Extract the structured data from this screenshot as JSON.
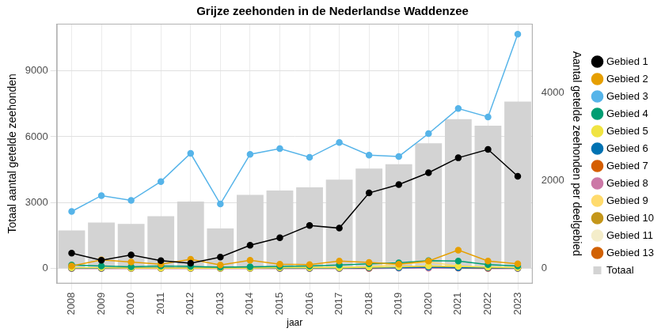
{
  "chart_data": {
    "type": "bar",
    "title": "Grijze zeehonden in de Nederlandse Waddenzee",
    "x_label": "jaar",
    "y_label": "Totaal aantal getelde zeehonden",
    "y2_label": "Aantal getelde zeehonden per deelgebied",
    "categories": [
      "2008",
      "2009",
      "2010",
      "2011",
      "2012",
      "2013",
      "2014",
      "2015",
      "2016",
      "2017",
      "2018",
      "2019",
      "2020",
      "2021",
      "2022",
      "2023"
    ],
    "ylim": [
      -680,
      11140
    ],
    "yticks": [
      0,
      3000,
      6000,
      9000
    ],
    "y2lim": [
      -340,
      5570
    ],
    "y2ticks": [
      0,
      2000,
      4000
    ],
    "grid": true,
    "legend": "right",
    "series": [
      {
        "name": "Totaal",
        "type": "bar",
        "color": "#d3d3d3",
        "values": [
          1740,
          2100,
          2030,
          2380,
          3050,
          1830,
          3350,
          3550,
          3700,
          4050,
          4550,
          4750,
          5700,
          6800,
          6500,
          7600
        ]
      },
      {
        "name": "Gebied 1",
        "type": "line",
        "axis": "y2",
        "marker": "circle",
        "color": "#000000",
        "values": [
          350,
          190,
          310,
          180,
          120,
          260,
          530,
          700,
          980,
          920,
          1720,
          1910,
          2180,
          2520,
          2710,
          2100
        ]
      },
      {
        "name": "Gebied 2",
        "type": "line",
        "axis": "y2",
        "marker": "circle",
        "color": "#E69F00",
        "values": [
          60,
          200,
          150,
          100,
          210,
          80,
          190,
          100,
          90,
          170,
          140,
          100,
          170,
          420,
          170,
          110
        ]
      },
      {
        "name": "Gebied 3",
        "type": "line",
        "axis": "y2",
        "marker": "circle",
        "color": "#56B4E9",
        "values": [
          1300,
          1660,
          1550,
          1980,
          2620,
          1470,
          2600,
          2730,
          2530,
          2870,
          2580,
          2550,
          3070,
          3640,
          3450,
          5330
        ]
      },
      {
        "name": "Gebied 4",
        "type": "line",
        "axis": "y2",
        "marker": "circle",
        "color": "#009E73",
        "values": [
          80,
          60,
          40,
          60,
          50,
          30,
          40,
          50,
          60,
          80,
          110,
          130,
          180,
          170,
          90,
          60
        ]
      },
      {
        "name": "Gebied 5",
        "type": "line",
        "axis": "y2",
        "marker": "circle",
        "color": "#F0E442",
        "values": [
          20,
          20,
          10,
          10,
          10,
          10,
          10,
          20,
          20,
          20,
          30,
          40,
          60,
          50,
          30,
          20
        ]
      },
      {
        "name": "Gebied 6",
        "type": "line",
        "axis": "y2",
        "marker": "circle",
        "color": "#0072B2",
        "values": [
          10,
          10,
          10,
          10,
          10,
          10,
          10,
          10,
          10,
          10,
          20,
          20,
          30,
          20,
          20,
          10
        ]
      },
      {
        "name": "Gebied 7",
        "type": "line",
        "axis": "y2",
        "marker": "circle",
        "color": "#D55E00",
        "values": [
          10,
          10,
          10,
          10,
          10,
          10,
          10,
          10,
          10,
          10,
          10,
          40,
          50,
          20,
          10,
          10
        ]
      },
      {
        "name": "Gebied 8",
        "type": "line",
        "axis": "y2",
        "marker": "circle",
        "color": "#CC79A7",
        "values": [
          0,
          0,
          0,
          0,
          0,
          0,
          0,
          0,
          0,
          0,
          0,
          10,
          10,
          10,
          0,
          0
        ]
      },
      {
        "name": "Gebied 9",
        "type": "line",
        "axis": "y2",
        "marker": "circle",
        "color": "#FFDB6D",
        "values": [
          10,
          10,
          10,
          10,
          20,
          10,
          20,
          20,
          30,
          30,
          40,
          100,
          150,
          60,
          30,
          20
        ]
      },
      {
        "name": "Gebied 10",
        "type": "line",
        "axis": "y2",
        "marker": "circle",
        "color": "#C4961A",
        "values": [
          10,
          10,
          10,
          10,
          10,
          10,
          10,
          10,
          10,
          20,
          20,
          30,
          40,
          30,
          20,
          20
        ]
      },
      {
        "name": "Gebied 11",
        "type": "line",
        "axis": "y2",
        "marker": "circle",
        "color": "#F4EDCA",
        "values": [
          0,
          0,
          0,
          0,
          0,
          0,
          0,
          0,
          0,
          0,
          10,
          10,
          10,
          10,
          10,
          0
        ]
      },
      {
        "name": "Gebied 13",
        "type": "line",
        "axis": "y2",
        "marker": "circle",
        "color": "#D16103",
        "values": [
          10,
          10,
          10,
          10,
          10,
          10,
          10,
          10,
          10,
          10,
          10,
          20,
          30,
          20,
          10,
          10
        ]
      }
    ]
  }
}
